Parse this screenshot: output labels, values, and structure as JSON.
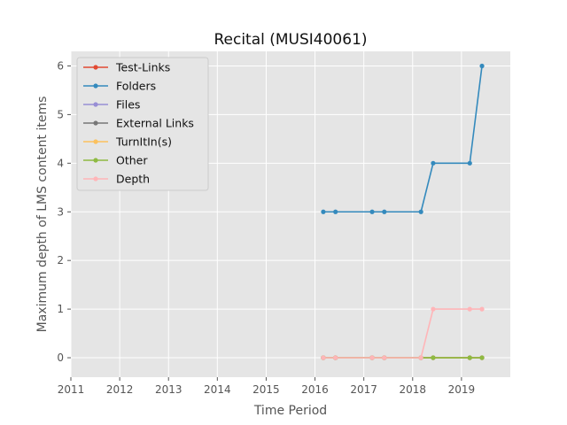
{
  "chart_data": {
    "type": "line",
    "title": "Recital (MUSI40061)",
    "xlabel": "Time Period",
    "ylabel": "Maximum depth of LMS content items",
    "xlim": [
      2011.0,
      2020.0
    ],
    "ylim": [
      -0.4,
      6.3
    ],
    "x_ticks": [
      2011,
      2012,
      2013,
      2014,
      2015,
      2016,
      2017,
      2018,
      2019
    ],
    "x_tick_labels": [
      "2011",
      "2012",
      "2013",
      "2014",
      "2015",
      "2016",
      "2017",
      "2018",
      "2019"
    ],
    "y_ticks": [
      0,
      1,
      2,
      3,
      4,
      5,
      6
    ],
    "y_tick_labels": [
      "0",
      "1",
      "2",
      "3",
      "4",
      "5",
      "6"
    ],
    "x": [
      2016.17,
      2016.42,
      2017.17,
      2017.42,
      2018.17,
      2018.42,
      2019.17,
      2019.42
    ],
    "grid": true,
    "legend_position": "top-left",
    "series": [
      {
        "name": "Test-Links",
        "color": "#E24A33",
        "values": [
          0,
          0,
          0,
          0,
          0,
          0,
          0,
          0
        ]
      },
      {
        "name": "Folders",
        "color": "#348ABD",
        "values": [
          3,
          3,
          3,
          3,
          3,
          4,
          4,
          6
        ]
      },
      {
        "name": "Files",
        "color": "#988ED5",
        "values": [
          0,
          0,
          0,
          0,
          0,
          0,
          0,
          0
        ]
      },
      {
        "name": "External Links",
        "color": "#777777",
        "values": [
          0,
          0,
          0,
          0,
          0,
          0,
          0,
          0
        ]
      },
      {
        "name": "TurnItIn(s)",
        "color": "#FBC15E",
        "values": [
          0,
          0,
          0,
          0,
          0,
          0,
          0,
          0
        ]
      },
      {
        "name": "Other",
        "color": "#8EBA42",
        "values": [
          0,
          0,
          0,
          0,
          0,
          0,
          0,
          0
        ]
      },
      {
        "name": "Depth",
        "color": "#FFB5B8",
        "values": [
          0,
          0,
          0,
          0,
          0,
          1,
          1,
          1
        ]
      }
    ]
  }
}
